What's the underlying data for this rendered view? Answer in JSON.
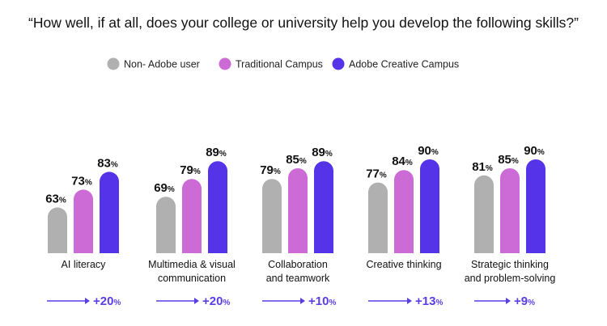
{
  "chart_data": {
    "type": "bar",
    "title": "“How well, if at all, does your college or university help you develop the following skills?”",
    "categories": [
      [
        "AI literacy"
      ],
      [
        "Multimedia & visual",
        "communication"
      ],
      [
        "Collaboration",
        "and teamwork"
      ],
      [
        "Creative thinking"
      ],
      [
        "Strategic thinking",
        "and problem-solving"
      ]
    ],
    "series": [
      {
        "name": "Non- Adobe user",
        "color": "#b0b0b0",
        "values": [
          63,
          69,
          79,
          77,
          81
        ]
      },
      {
        "name": "Traditional Campus",
        "color": "#cc6bd6",
        "values": [
          73,
          79,
          85,
          84,
          85
        ]
      },
      {
        "name": "Adobe Creative Campus",
        "color": "#5533e8",
        "values": [
          83,
          89,
          89,
          90,
          90
        ]
      }
    ],
    "value_suffix": "%",
    "deltas": [
      "+20",
      "+20",
      "+10",
      "+13",
      "+9"
    ],
    "delta_suffix": "%",
    "accent_color": "#5b3de6",
    "legend_position": "top",
    "grid": false
  }
}
